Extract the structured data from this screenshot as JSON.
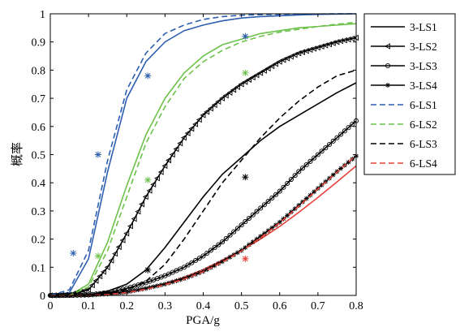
{
  "chart_data": {
    "type": "line",
    "xlabel": "PGA/g",
    "ylabel": "概率",
    "xlim": [
      0,
      0.8
    ],
    "ylim": [
      0,
      1
    ],
    "xticks": [
      0,
      0.1,
      0.2,
      0.3,
      0.4,
      0.5,
      0.6,
      0.7,
      0.8
    ],
    "yticks": [
      0,
      0.1,
      0.2,
      0.3,
      0.4,
      0.5,
      0.6,
      0.7,
      0.8,
      0.9,
      1
    ],
    "xtick_labels": [
      "0",
      "0.1",
      "0.2",
      "0.3",
      "0.4",
      "0.5",
      "0.6",
      "0.7",
      "0.8"
    ],
    "ytick_labels": [
      "0",
      "0.1",
      "0.2",
      "0.3",
      "0.4",
      "0.5",
      "0.6",
      "0.7",
      "0.8",
      "0.9",
      "1"
    ],
    "grid": false,
    "legend_position": "outside-top-right",
    "series": [
      {
        "name": "3-LS1",
        "color": "#000000",
        "dash": "solid",
        "marker": "none",
        "x": [
          0,
          0.05,
          0.1,
          0.15,
          0.2,
          0.25,
          0.3,
          0.35,
          0.4,
          0.45,
          0.5,
          0.55,
          0.6,
          0.65,
          0.7,
          0.75,
          0.8
        ],
        "y": [
          0,
          0.0,
          0.002,
          0.015,
          0.04,
          0.09,
          0.17,
          0.26,
          0.35,
          0.43,
          0.49,
          0.55,
          0.6,
          0.64,
          0.68,
          0.72,
          0.755
        ]
      },
      {
        "name": "3-LS2",
        "color": "#000000",
        "dash": "solid",
        "marker": "triangle-left",
        "x": [
          0,
          0.05,
          0.1,
          0.15,
          0.2,
          0.25,
          0.3,
          0.35,
          0.4,
          0.45,
          0.5,
          0.55,
          0.6,
          0.65,
          0.7,
          0.75,
          0.8
        ],
        "y": [
          0,
          0.002,
          0.02,
          0.1,
          0.22,
          0.35,
          0.46,
          0.56,
          0.64,
          0.7,
          0.75,
          0.79,
          0.83,
          0.86,
          0.88,
          0.9,
          0.915
        ]
      },
      {
        "name": "3-LS3",
        "color": "#000000",
        "dash": "solid",
        "marker": "circle",
        "x": [
          0,
          0.05,
          0.1,
          0.15,
          0.2,
          0.25,
          0.3,
          0.35,
          0.4,
          0.45,
          0.5,
          0.55,
          0.6,
          0.65,
          0.7,
          0.75,
          0.8
        ],
        "y": [
          0,
          0.0,
          0.002,
          0.01,
          0.025,
          0.045,
          0.07,
          0.1,
          0.14,
          0.19,
          0.25,
          0.31,
          0.37,
          0.44,
          0.5,
          0.56,
          0.62
        ]
      },
      {
        "name": "3-LS4",
        "color": "#000000",
        "dash": "solid",
        "marker": "star",
        "x": [
          0,
          0.05,
          0.1,
          0.15,
          0.2,
          0.25,
          0.3,
          0.35,
          0.4,
          0.45,
          0.5,
          0.55,
          0.6,
          0.65,
          0.7,
          0.75,
          0.8
        ],
        "y": [
          0,
          0.0,
          0.001,
          0.005,
          0.012,
          0.025,
          0.04,
          0.06,
          0.085,
          0.12,
          0.16,
          0.21,
          0.26,
          0.32,
          0.38,
          0.44,
          0.495
        ]
      },
      {
        "name": "6-LS1",
        "color": "#2e5fb0",
        "dash": "dashed",
        "marker": "none",
        "x": [
          0,
          0.05,
          0.1,
          0.15,
          0.2,
          0.25,
          0.3,
          0.35,
          0.4,
          0.45,
          0.5,
          0.55,
          0.6,
          0.65,
          0.7,
          0.75,
          0.8
        ],
        "y": [
          0,
          0.02,
          0.16,
          0.48,
          0.73,
          0.86,
          0.93,
          0.96,
          0.98,
          0.99,
          0.995,
          0.997,
          0.998,
          0.999,
          0.999,
          1.0,
          1.0
        ]
      },
      {
        "name": "6-LS2",
        "color": "#6cc24a",
        "dash": "dashed",
        "marker": "none",
        "x": [
          0,
          0.05,
          0.1,
          0.15,
          0.2,
          0.25,
          0.3,
          0.35,
          0.4,
          0.45,
          0.5,
          0.55,
          0.6,
          0.65,
          0.7,
          0.75,
          0.8
        ],
        "y": [
          0,
          0.0,
          0.03,
          0.16,
          0.35,
          0.54,
          0.67,
          0.77,
          0.83,
          0.87,
          0.9,
          0.92,
          0.935,
          0.945,
          0.955,
          0.963,
          0.97
        ]
      },
      {
        "name": "6-LS3",
        "color": "#000000",
        "dash": "dashed",
        "marker": "none",
        "x": [
          0,
          0.05,
          0.1,
          0.15,
          0.2,
          0.25,
          0.3,
          0.35,
          0.4,
          0.45,
          0.5,
          0.55,
          0.6,
          0.65,
          0.7,
          0.75,
          0.8
        ],
        "y": [
          0,
          0.0,
          0.001,
          0.006,
          0.02,
          0.05,
          0.11,
          0.2,
          0.3,
          0.4,
          0.48,
          0.56,
          0.63,
          0.69,
          0.74,
          0.78,
          0.8
        ]
      },
      {
        "name": "6-LS4",
        "color": "#e8413a",
        "dash": "dashed",
        "marker": "none",
        "x": [
          0,
          0.05,
          0.1,
          0.15,
          0.2,
          0.25,
          0.3,
          0.35,
          0.4,
          0.45,
          0.5,
          0.55,
          0.6,
          0.65,
          0.7,
          0.75,
          0.8
        ],
        "y": [
          0,
          0.0,
          0.0,
          0.003,
          0.01,
          0.022,
          0.038,
          0.058,
          0.084,
          0.118,
          0.158,
          0.205,
          0.258,
          0.317,
          0.378,
          0.438,
          0.497
        ]
      }
    ],
    "extra_lines": [
      {
        "color": "#2e5fb0",
        "dash": "solid",
        "x": [
          0,
          0.05,
          0.1,
          0.15,
          0.2,
          0.25,
          0.3,
          0.35,
          0.4,
          0.45,
          0.5,
          0.55,
          0.6,
          0.65,
          0.7,
          0.75,
          0.8
        ],
        "y": [
          0,
          0.01,
          0.13,
          0.44,
          0.7,
          0.83,
          0.9,
          0.94,
          0.96,
          0.975,
          0.985,
          0.99,
          0.993,
          0.996,
          0.998,
          0.999,
          1.0
        ]
      },
      {
        "color": "#6cc24a",
        "dash": "solid",
        "x": [
          0,
          0.05,
          0.1,
          0.15,
          0.2,
          0.25,
          0.3,
          0.35,
          0.4,
          0.45,
          0.5,
          0.55,
          0.6,
          0.65,
          0.7,
          0.75,
          0.8
        ],
        "y": [
          0,
          0.0,
          0.04,
          0.19,
          0.39,
          0.57,
          0.7,
          0.79,
          0.85,
          0.89,
          0.91,
          0.93,
          0.94,
          0.95,
          0.955,
          0.96,
          0.965
        ]
      },
      {
        "color": "#e8413a",
        "dash": "solid",
        "x": [
          0,
          0.05,
          0.1,
          0.15,
          0.2,
          0.25,
          0.3,
          0.35,
          0.4,
          0.45,
          0.5,
          0.55,
          0.6,
          0.65,
          0.7,
          0.75,
          0.8
        ],
        "y": [
          0,
          0.0,
          0.001,
          0.005,
          0.012,
          0.025,
          0.042,
          0.064,
          0.092,
          0.125,
          0.16,
          0.2,
          0.245,
          0.295,
          0.348,
          0.403,
          0.46
        ]
      }
    ],
    "scatter_points": [
      {
        "color": "#2e5fb0",
        "x": 0.06,
        "y": 0.15
      },
      {
        "color": "#2e5fb0",
        "x": 0.125,
        "y": 0.5
      },
      {
        "color": "#2e5fb0",
        "x": 0.255,
        "y": 0.78
      },
      {
        "color": "#2e5fb0",
        "x": 0.51,
        "y": 0.92
      },
      {
        "color": "#6cc24a",
        "x": 0.125,
        "y": 0.14
      },
      {
        "color": "#6cc24a",
        "x": 0.255,
        "y": 0.41
      },
      {
        "color": "#6cc24a",
        "x": 0.51,
        "y": 0.79
      },
      {
        "color": "#000000",
        "x": 0.255,
        "y": 0.09
      },
      {
        "color": "#000000",
        "x": 0.51,
        "y": 0.42
      },
      {
        "color": "#e8413a",
        "x": 0.51,
        "y": 0.13
      }
    ]
  }
}
